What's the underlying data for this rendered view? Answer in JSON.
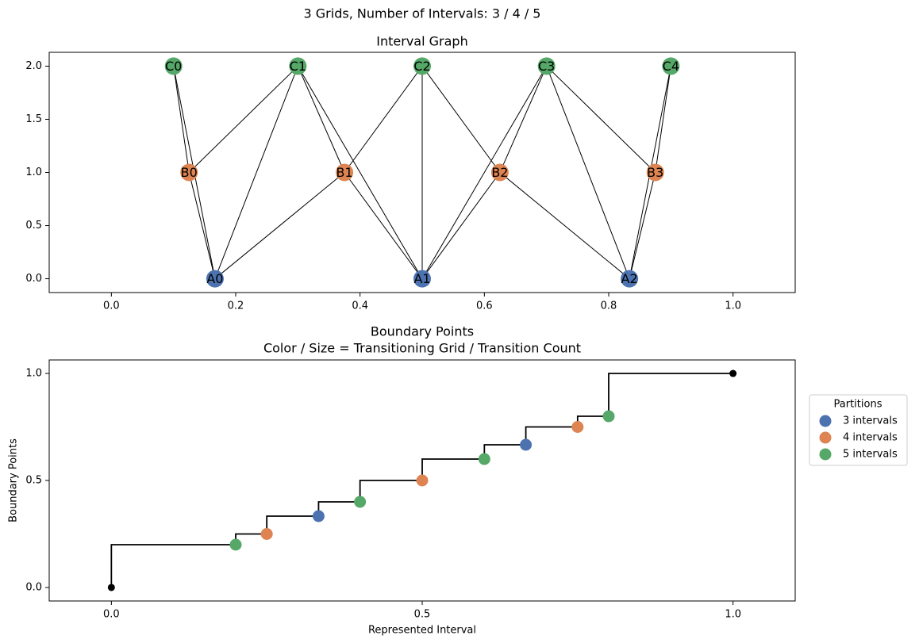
{
  "title": "3 Grids, Number of Intervals: 3 / 4 / 5",
  "chart_data": [
    {
      "type": "graph",
      "title": "Interval Graph",
      "xlim": [
        -0.1,
        1.1
      ],
      "ylim": [
        -0.13,
        2.13
      ],
      "xticks": [
        {
          "value": 0,
          "label": "0.0"
        },
        {
          "value": 0.2,
          "label": "0.2"
        },
        {
          "value": 0.4,
          "label": "0.4"
        },
        {
          "value": 0.6,
          "label": "0.6"
        },
        {
          "value": 0.8,
          "label": "0.8"
        },
        {
          "value": 1,
          "label": "1.0"
        }
      ],
      "yticks": [
        {
          "value": 0,
          "label": "0.0"
        },
        {
          "value": 0.5,
          "label": "0.5"
        },
        {
          "value": 1,
          "label": "1.0"
        },
        {
          "value": 1.5,
          "label": "1.5"
        },
        {
          "value": 2,
          "label": "2.0"
        }
      ],
      "nodes": [
        {
          "label": "A0",
          "x": 0.1667,
          "y": 0,
          "color": "#4c72b0"
        },
        {
          "label": "A1",
          "x": 0.5,
          "y": 0,
          "color": "#4c72b0"
        },
        {
          "label": "A2",
          "x": 0.8333,
          "y": 0,
          "color": "#4c72b0"
        },
        {
          "label": "B0",
          "x": 0.125,
          "y": 1,
          "color": "#dd8452"
        },
        {
          "label": "B1",
          "x": 0.375,
          "y": 1,
          "color": "#dd8452"
        },
        {
          "label": "B2",
          "x": 0.625,
          "y": 1,
          "color": "#dd8452"
        },
        {
          "label": "B3",
          "x": 0.875,
          "y": 1,
          "color": "#dd8452"
        },
        {
          "label": "C0",
          "x": 0.1,
          "y": 2,
          "color": "#55a868"
        },
        {
          "label": "C1",
          "x": 0.3,
          "y": 2,
          "color": "#55a868"
        },
        {
          "label": "C2",
          "x": 0.5,
          "y": 2,
          "color": "#55a868"
        },
        {
          "label": "C3",
          "x": 0.7,
          "y": 2,
          "color": "#55a868"
        },
        {
          "label": "C4",
          "x": 0.9,
          "y": 2,
          "color": "#55a868"
        }
      ],
      "edges": [
        [
          0,
          3
        ],
        [
          0,
          4
        ],
        [
          0,
          7
        ],
        [
          0,
          8
        ],
        [
          1,
          4
        ],
        [
          1,
          5
        ],
        [
          1,
          8
        ],
        [
          1,
          9
        ],
        [
          1,
          10
        ],
        [
          2,
          5
        ],
        [
          2,
          6
        ],
        [
          2,
          10
        ],
        [
          2,
          11
        ],
        [
          3,
          7
        ],
        [
          3,
          8
        ],
        [
          4,
          8
        ],
        [
          4,
          9
        ],
        [
          5,
          9
        ],
        [
          5,
          10
        ],
        [
          6,
          10
        ],
        [
          6,
          11
        ]
      ],
      "edge_color": "#000000"
    },
    {
      "type": "step",
      "title": "Boundary Points",
      "subtitle": "Color / Size = Transitioning Grid / Transition Count",
      "x_label": "Represented Interval",
      "y_label": "Boundary Points",
      "xlim": [
        -0.1,
        1.1
      ],
      "ylim": [
        -0.063,
        1.063
      ],
      "xticks": [
        {
          "value": 0,
          "label": "0.0"
        },
        {
          "value": 0.5,
          "label": "0.5"
        },
        {
          "value": 1,
          "label": "1.0"
        }
      ],
      "yticks": [
        {
          "value": 0,
          "label": "0.0"
        },
        {
          "value": 0.5,
          "label": "0.5"
        },
        {
          "value": 1,
          "label": "1.0"
        }
      ],
      "line": {
        "color": "#000000",
        "x": [
          0,
          0.2,
          0.25,
          0.3333,
          0.4,
          0.5,
          0.6,
          0.6667,
          0.75,
          0.8,
          1
        ],
        "values": [
          0,
          0.2,
          0.25,
          0.3333,
          0.4,
          0.5,
          0.6,
          0.6667,
          0.75,
          0.8,
          1
        ]
      },
      "endpoints": {
        "color": "#000000",
        "x": [
          0,
          1
        ],
        "values": [
          0,
          1
        ]
      },
      "legend": "outside right",
      "legend_title": "Partitions",
      "series": [
        {
          "name": "3 intervals",
          "color": "#4c72b0",
          "x": [
            0.3333,
            0.6667
          ],
          "values": [
            0.3333,
            0.6667
          ]
        },
        {
          "name": "4 intervals",
          "color": "#dd8452",
          "x": [
            0.25,
            0.5,
            0.75
          ],
          "values": [
            0.25,
            0.5,
            0.75
          ]
        },
        {
          "name": "5 intervals",
          "color": "#55a868",
          "x": [
            0.2,
            0.4,
            0.6,
            0.8
          ],
          "values": [
            0.2,
            0.4,
            0.6,
            0.8
          ]
        }
      ]
    }
  ]
}
